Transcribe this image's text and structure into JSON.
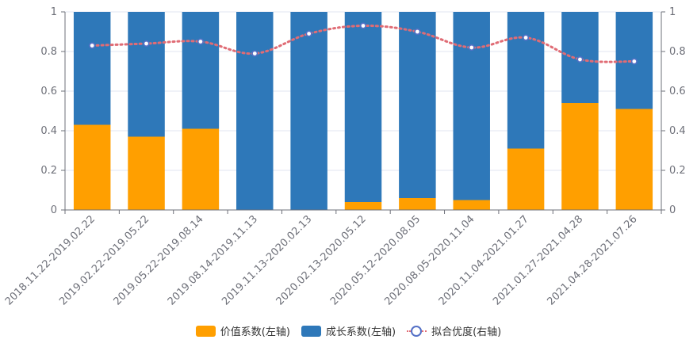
{
  "chart_data": {
    "type": "bar",
    "stacked": true,
    "categories": [
      "2018.11.22-2019.02.22",
      "2019.02.22-2019.05.22",
      "2019.05.22-2019.08.14",
      "2019.08.14-2019.11.13",
      "2019.11.13-2020.02.13",
      "2020.02.13-2020.05.12",
      "2020.05.12-2020.08.05",
      "2020.08.05-2020.11.04",
      "2020.11.04-2021.01.27",
      "2021.01.27-2021.04.28",
      "2021.04.28-2021.07.26"
    ],
    "series": [
      {
        "name": "价值系数(左轴)",
        "type": "bar",
        "axis": "left",
        "color": "#ff9f00",
        "values": [
          0.43,
          0.37,
          0.41,
          0.0,
          0.0,
          0.04,
          0.06,
          0.05,
          0.31,
          0.54,
          0.51
        ]
      },
      {
        "name": "成长系数(左轴)",
        "type": "bar",
        "axis": "left",
        "color": "#2e78b9",
        "values": [
          0.57,
          0.63,
          0.59,
          1.0,
          1.0,
          0.96,
          0.94,
          0.95,
          0.69,
          0.46,
          0.49
        ]
      },
      {
        "name": "拟合优度(右轴)",
        "type": "line",
        "axis": "right",
        "color": "#e06c75",
        "marker_color": "#5470c6",
        "values": [
          0.83,
          0.84,
          0.85,
          0.79,
          0.89,
          0.93,
          0.9,
          0.82,
          0.87,
          0.76,
          0.75
        ]
      }
    ],
    "y_left": {
      "min": 0,
      "max": 1,
      "ticks": [
        "0",
        "0.2",
        "0.4",
        "0.6",
        "0.8",
        "1"
      ]
    },
    "y_right": {
      "min": 0,
      "max": 1,
      "ticks": [
        "0",
        "0.2",
        "0.4",
        "0.6",
        "0.8",
        "1"
      ]
    },
    "grid": true,
    "legend_position": "bottom-center"
  }
}
